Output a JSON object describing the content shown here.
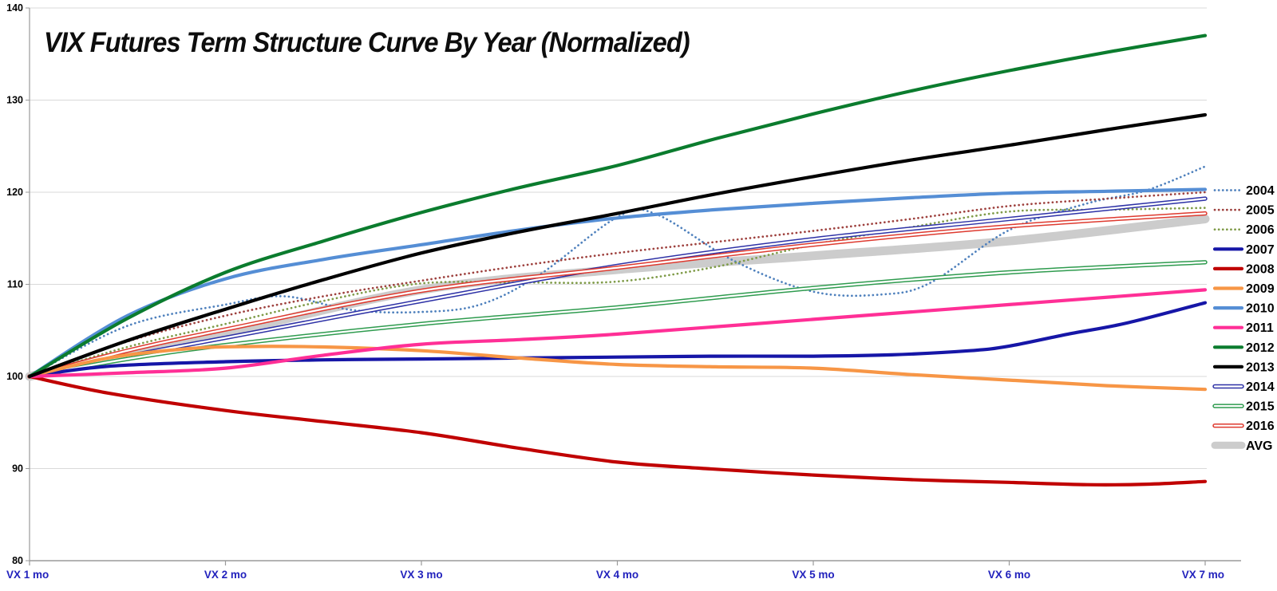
{
  "chart_data": {
    "type": "line",
    "title": "VIX Futures Term Structure Curve By Year (Normalized)",
    "xlabel": "",
    "ylabel": "",
    "x_categories": [
      "VX 1 mo",
      "VX 2 mo",
      "VX 3 mo",
      "VX 4 mo",
      "VX 5 mo",
      "VX 6 mo",
      "VX 7 mo"
    ],
    "y_ticks": [
      80,
      90,
      100,
      110,
      120,
      130,
      140
    ],
    "ylim": [
      80,
      140
    ],
    "grid": true,
    "legend_position": "right",
    "axis_label_color": "#2222bd",
    "tick_label_color": "#000000",
    "gridline_color": "#d9d9d9",
    "axis_line_color": "#9a9a9a",
    "series": [
      {
        "name": "2004",
        "color": "#4f81bd",
        "style": "dotted",
        "values": [
          100,
          107.8,
          107.0,
          117.3,
          109.2,
          115.9,
          122.8
        ],
        "points": [
          [
            1,
            100
          ],
          [
            1.5,
            105.5
          ],
          [
            2,
            107.8
          ],
          [
            2.3,
            108.7
          ],
          [
            2.65,
            107.2
          ],
          [
            3,
            107.0
          ],
          [
            3.3,
            107.8
          ],
          [
            3.6,
            111.0
          ],
          [
            4,
            117.3
          ],
          [
            4.2,
            117.6
          ],
          [
            4.6,
            112.5
          ],
          [
            5,
            109.2
          ],
          [
            5.35,
            108.9
          ],
          [
            5.6,
            110.2
          ],
          [
            6,
            115.9
          ],
          [
            6.4,
            118.8
          ],
          [
            6.7,
            120.2
          ],
          [
            7,
            122.8
          ]
        ]
      },
      {
        "name": "2005",
        "color": "#9e413e",
        "style": "dotted",
        "values": [
          100,
          106.6,
          110.4,
          113.4,
          115.8,
          118.5,
          120.0
        ],
        "points": [
          [
            1,
            100
          ],
          [
            1.5,
            103.8
          ],
          [
            2,
            106.6
          ],
          [
            2.5,
            108.7
          ],
          [
            3,
            110.4
          ],
          [
            3.5,
            112.0
          ],
          [
            4,
            113.4
          ],
          [
            4.5,
            114.6
          ],
          [
            5,
            115.8
          ],
          [
            5.5,
            117.1
          ],
          [
            6,
            118.5
          ],
          [
            6.5,
            119.3
          ],
          [
            7,
            120.0
          ]
        ]
      },
      {
        "name": "2006",
        "color": "#7f9b48",
        "style": "dotted",
        "values": [
          100,
          105.7,
          110.1,
          110.3,
          114.3,
          117.9,
          118.3
        ],
        "points": [
          [
            1,
            100
          ],
          [
            1.5,
            103.2
          ],
          [
            2,
            105.7
          ],
          [
            2.5,
            108.2
          ],
          [
            3,
            110.1
          ],
          [
            3.5,
            110.2
          ],
          [
            4,
            110.3
          ],
          [
            4.5,
            111.9
          ],
          [
            5,
            114.3
          ],
          [
            5.5,
            116.2
          ],
          [
            6,
            117.9
          ],
          [
            6.5,
            118.1
          ],
          [
            7,
            118.3
          ]
        ]
      },
      {
        "name": "2007",
        "color": "#1616a7",
        "style": "solid",
        "values": [
          100,
          101.6,
          101.9,
          102.1,
          102.2,
          103.3,
          108.0
        ],
        "points": [
          [
            1,
            100
          ],
          [
            1.4,
            101.1
          ],
          [
            2,
            101.6
          ],
          [
            2.5,
            101.8
          ],
          [
            3,
            101.9
          ],
          [
            4,
            102.1
          ],
          [
            4.5,
            102.2
          ],
          [
            5,
            102.2
          ],
          [
            5.4,
            102.35
          ],
          [
            5.8,
            102.8
          ],
          [
            6,
            103.3
          ],
          [
            6.3,
            104.6
          ],
          [
            6.6,
            105.8
          ],
          [
            7,
            108.0
          ]
        ]
      },
      {
        "name": "2008",
        "color": "#c00000",
        "style": "solid",
        "values": [
          100,
          96.3,
          93.9,
          90.7,
          89.3,
          88.5,
          88.6
        ],
        "points": [
          [
            1,
            100
          ],
          [
            1.4,
            98.2
          ],
          [
            2,
            96.3
          ],
          [
            2.5,
            95.1
          ],
          [
            3,
            93.9
          ],
          [
            3.5,
            92.2
          ],
          [
            4,
            90.7
          ],
          [
            4.45,
            90.0
          ],
          [
            5,
            89.3
          ],
          [
            5.5,
            88.8
          ],
          [
            6,
            88.5
          ],
          [
            6.4,
            88.25
          ],
          [
            6.7,
            88.3
          ],
          [
            7,
            88.6
          ]
        ]
      },
      {
        "name": "2009",
        "color": "#f79646",
        "style": "solid",
        "values": [
          100,
          103.1,
          102.8,
          101.3,
          100.9,
          99.6,
          98.6
        ],
        "points": [
          [
            1,
            100
          ],
          [
            1.4,
            102.0
          ],
          [
            1.8,
            103.0
          ],
          [
            2.1,
            103.25
          ],
          [
            2.5,
            103.2
          ],
          [
            3,
            102.8
          ],
          [
            3.5,
            102.0
          ],
          [
            4,
            101.3
          ],
          [
            4.5,
            101.05
          ],
          [
            5,
            100.9
          ],
          [
            5.5,
            100.2
          ],
          [
            6,
            99.6
          ],
          [
            6.5,
            99.0
          ],
          [
            7,
            98.6
          ]
        ]
      },
      {
        "name": "2010",
        "color": "#558ed5",
        "style": "solid",
        "values": [
          100,
          110.6,
          114.3,
          117.2,
          118.8,
          119.9,
          120.3
        ],
        "points": [
          [
            1,
            100
          ],
          [
            1.5,
            106.6
          ],
          [
            2,
            110.6
          ],
          [
            2.5,
            112.7
          ],
          [
            3,
            114.3
          ],
          [
            3.5,
            115.9
          ],
          [
            4,
            117.2
          ],
          [
            4.5,
            118.1
          ],
          [
            5,
            118.8
          ],
          [
            5.5,
            119.4
          ],
          [
            6,
            119.9
          ],
          [
            6.5,
            120.1
          ],
          [
            7,
            120.3
          ]
        ]
      },
      {
        "name": "2011",
        "color": "#ff2f96",
        "style": "solid",
        "values": [
          100,
          100.9,
          103.5,
          104.6,
          106.2,
          107.8,
          109.4
        ],
        "points": [
          [
            1,
            100
          ],
          [
            1.5,
            100.4
          ],
          [
            2,
            100.9
          ],
          [
            2.5,
            102.3
          ],
          [
            3,
            103.5
          ],
          [
            3.5,
            104.0
          ],
          [
            4,
            104.6
          ],
          [
            5,
            106.2
          ],
          [
            6,
            107.8
          ],
          [
            7,
            109.4
          ]
        ]
      },
      {
        "name": "2012",
        "color": "#0b7c2e",
        "style": "solid",
        "values": [
          100,
          111.3,
          117.8,
          122.9,
          128.5,
          133.2,
          137.0
        ],
        "points": [
          [
            1,
            100
          ],
          [
            1.5,
            106.3
          ],
          [
            2,
            111.3
          ],
          [
            2.5,
            114.7
          ],
          [
            3,
            117.8
          ],
          [
            3.5,
            120.5
          ],
          [
            4,
            122.9
          ],
          [
            4.5,
            125.8
          ],
          [
            5,
            128.5
          ],
          [
            5.5,
            131.0
          ],
          [
            6,
            133.2
          ],
          [
            6.5,
            135.2
          ],
          [
            7,
            137.0
          ]
        ]
      },
      {
        "name": "2013",
        "color": "#000000",
        "style": "solid",
        "values": [
          100,
          107.3,
          113.4,
          117.7,
          121.7,
          125.1,
          128.4
        ],
        "points": [
          [
            1,
            100
          ],
          [
            1.5,
            103.9
          ],
          [
            2,
            107.3
          ],
          [
            2.5,
            110.5
          ],
          [
            3,
            113.4
          ],
          [
            3.5,
            115.7
          ],
          [
            4,
            117.7
          ],
          [
            4.5,
            119.8
          ],
          [
            5,
            121.7
          ],
          [
            5.5,
            123.5
          ],
          [
            6,
            125.1
          ],
          [
            6.5,
            126.8
          ],
          [
            7,
            128.4
          ]
        ]
      },
      {
        "name": "2014",
        "color": "#2d31a6",
        "style": "double",
        "values": [
          100,
          104.2,
          108.2,
          112.0,
          114.9,
          117.1,
          119.3
        ],
        "points": [
          [
            1,
            100
          ],
          [
            1.5,
            102.2
          ],
          [
            2,
            104.2
          ],
          [
            3,
            108.2
          ],
          [
            4,
            112.0
          ],
          [
            5,
            114.9
          ],
          [
            6,
            117.1
          ],
          [
            7,
            119.3
          ]
        ]
      },
      {
        "name": "2015",
        "color": "#2e9b4e",
        "style": "double",
        "values": [
          100,
          103.4,
          105.7,
          107.5,
          109.6,
          111.3,
          112.4
        ],
        "points": [
          [
            1,
            100
          ],
          [
            1.5,
            101.9
          ],
          [
            2,
            103.4
          ],
          [
            3,
            105.7
          ],
          [
            4,
            107.5
          ],
          [
            5,
            109.6
          ],
          [
            6,
            111.3
          ],
          [
            7,
            112.4
          ]
        ]
      },
      {
        "name": "2016",
        "color": "#de3a2f",
        "style": "double",
        "values": [
          100,
          105.1,
          109.3,
          111.8,
          114.3,
          116.3,
          117.7
        ],
        "points": [
          [
            1,
            100
          ],
          [
            1.5,
            102.8
          ],
          [
            2,
            105.1
          ],
          [
            3,
            109.3
          ],
          [
            4,
            111.8
          ],
          [
            5,
            114.3
          ],
          [
            6,
            116.3
          ],
          [
            7,
            117.7
          ]
        ]
      },
      {
        "name": "AVG",
        "color": "#cccccc",
        "style": "band",
        "values": [
          100,
          104.7,
          109.4,
          111.6,
          113.1,
          114.7,
          117.1
        ],
        "points": [
          [
            1,
            100
          ],
          [
            1.5,
            102.5
          ],
          [
            2,
            104.7
          ],
          [
            3,
            109.4
          ],
          [
            4,
            111.6
          ],
          [
            5,
            113.1
          ],
          [
            6,
            114.7
          ],
          [
            7,
            117.1
          ]
        ]
      }
    ]
  }
}
